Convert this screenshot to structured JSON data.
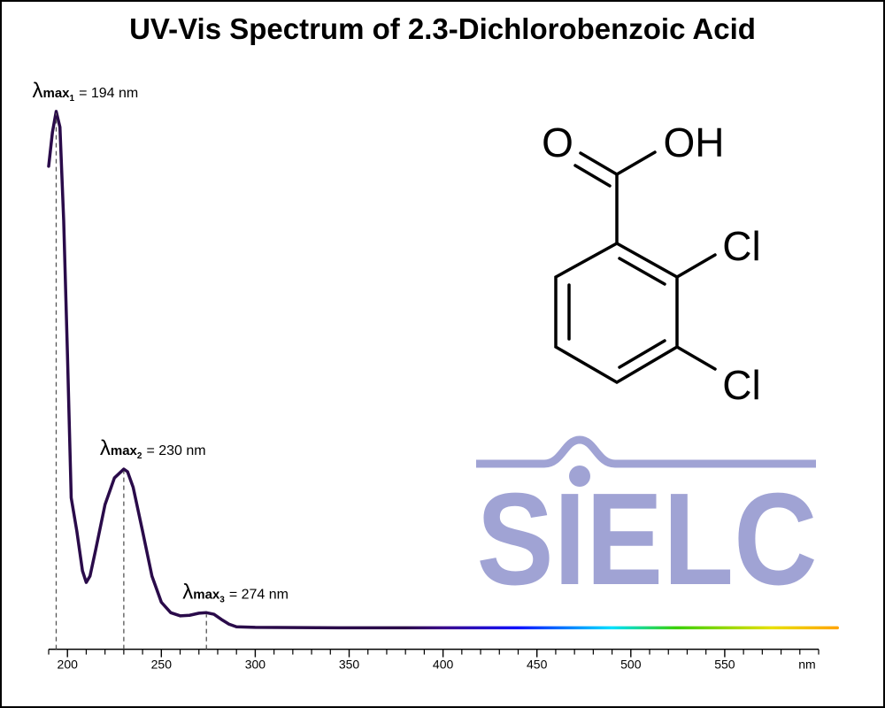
{
  "chart_data": {
    "type": "line",
    "title": "UV-Vis Spectrum of 2.3-Dichlorobenzoic Acid",
    "x_label": "nm",
    "x": [
      190,
      192,
      194,
      196,
      198,
      200,
      202,
      205,
      208,
      210,
      212,
      215,
      220,
      225,
      230,
      232,
      235,
      240,
      245,
      250,
      255,
      260,
      265,
      270,
      274,
      278,
      282,
      286,
      290,
      300,
      350,
      400,
      450,
      500,
      550,
      600,
      610
    ],
    "series": [
      {
        "color": "#2a0b4a",
        "values": [
          0.885,
          0.95,
          0.99,
          0.96,
          0.78,
          0.525,
          0.25,
          0.186,
          0.11,
          0.088,
          0.1,
          0.15,
          0.237,
          0.288,
          0.305,
          0.3,
          0.27,
          0.186,
          0.1,
          0.05,
          0.03,
          0.024,
          0.025,
          0.029,
          0.03,
          0.027,
          0.017,
          0.008,
          0.003,
          0.002,
          0.001,
          0.001,
          0.001,
          0.001,
          0.001,
          0.001,
          0.001
        ]
      }
    ],
    "xlim": [
      190,
      600
    ],
    "ylim": [
      -0.04,
      1
    ],
    "xticks": [
      200,
      250,
      300,
      350,
      400,
      450,
      500,
      550
    ],
    "xticks_minor": [
      190,
      210,
      220,
      230,
      240,
      260,
      270,
      280,
      290,
      310,
      320,
      330,
      340,
      360,
      370,
      380,
      390,
      410,
      420,
      430,
      440,
      460,
      470,
      480,
      490,
      510,
      520,
      530,
      540,
      560,
      570,
      580,
      590,
      600
    ],
    "annotations": [
      {
        "symbol": "λ",
        "sub": "max",
        "index": "1",
        "text": "= 194 nm",
        "x": 194
      },
      {
        "symbol": "λ",
        "sub": "max",
        "index": "2",
        "text": "= 230 nm",
        "x": 230
      },
      {
        "symbol": "λ",
        "sub": "max",
        "index": "3",
        "text": "= 274 nm",
        "x": 274
      }
    ]
  },
  "structure": {
    "atoms": [
      "O",
      "OH",
      "Cl",
      "Cl"
    ]
  },
  "logo": "SIELC"
}
